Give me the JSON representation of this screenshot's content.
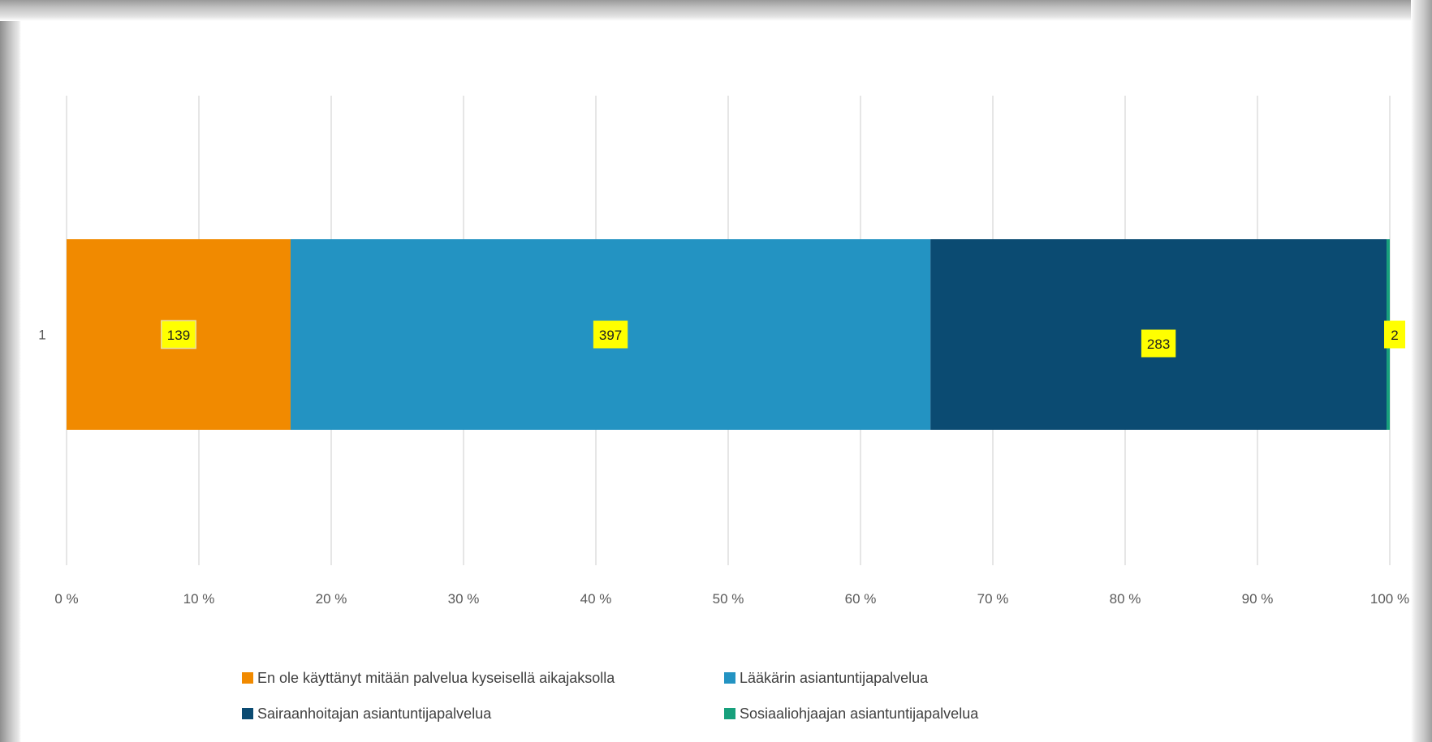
{
  "chart_data": {
    "type": "bar",
    "orientation": "horizontal",
    "stacked": "percent",
    "categories": [
      "1"
    ],
    "series": [
      {
        "name": "En ole käyttänyt mitään palvelua kyseisellä aikajaksolla",
        "values": [
          139
        ],
        "color": "#F18A00"
      },
      {
        "name": "Lääkärin asiantuntijapalvelua",
        "values": [
          397
        ],
        "color": "#2393C2"
      },
      {
        "name": "Sairaanhoitajan asiantuntijapalvelua",
        "values": [
          283
        ],
        "color": "#0B4B72"
      },
      {
        "name": "Sosiaaliohjaajan asiantuntijapalvelua",
        "values": [
          2
        ],
        "color": "#17A07C"
      }
    ],
    "data_labels": [
      "139",
      "397",
      "283",
      "2"
    ],
    "x_ticks": [
      "0 %",
      "10 %",
      "20 %",
      "30 %",
      "40 %",
      "50 %",
      "60 %",
      "70 %",
      "80 %",
      "90 %",
      "100 %"
    ],
    "xlim": [
      0,
      100
    ],
    "grid": true,
    "legend_position": "bottom",
    "data_label_background": "#FFFF00"
  }
}
